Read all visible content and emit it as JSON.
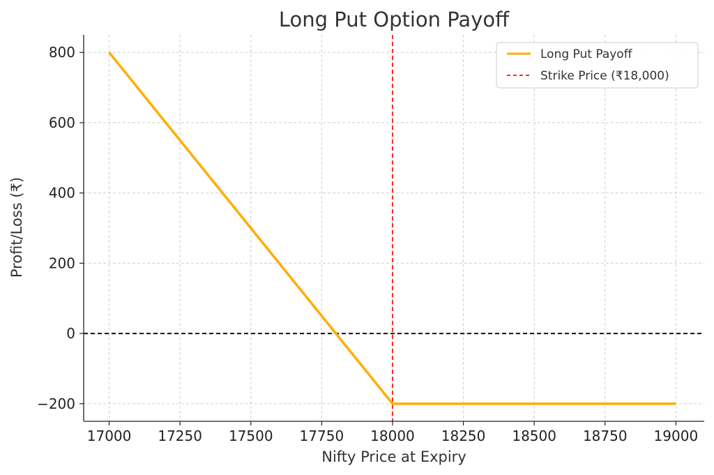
{
  "chart_data": {
    "type": "line",
    "title": "Long Put Option Payoff",
    "xlabel": "Nifty Price at Expiry",
    "ylabel": "Profit/Loss (₹)",
    "xlim": [
      16910,
      19100
    ],
    "ylim": [
      -250,
      850
    ],
    "x_ticks": [
      17000,
      17250,
      17500,
      17750,
      18000,
      18250,
      18500,
      18750,
      19000
    ],
    "y_ticks": [
      -200,
      0,
      200,
      400,
      600,
      800
    ],
    "x_tick_labels": [
      "17000",
      "17250",
      "17500",
      "17750",
      "18000",
      "18250",
      "18500",
      "18750",
      "19000"
    ],
    "y_tick_labels": [
      "−200",
      "0",
      "200",
      "400",
      "600",
      "800"
    ],
    "grid": true,
    "legend_position": "top-right",
    "series": [
      {
        "name": "Long Put Payoff",
        "color": "#ffad00",
        "style": "solid",
        "points": [
          [
            17000,
            800
          ],
          [
            18000,
            -200
          ],
          [
            19000,
            -200
          ]
        ]
      }
    ],
    "reference_lines": [
      {
        "name": "Strike Price (₹18,000)",
        "orientation": "vertical",
        "value": 18000,
        "color": "#ff2a2a",
        "style": "dashed"
      },
      {
        "orientation": "horizontal",
        "value": 0,
        "color": "#111111",
        "style": "dashed"
      }
    ]
  }
}
